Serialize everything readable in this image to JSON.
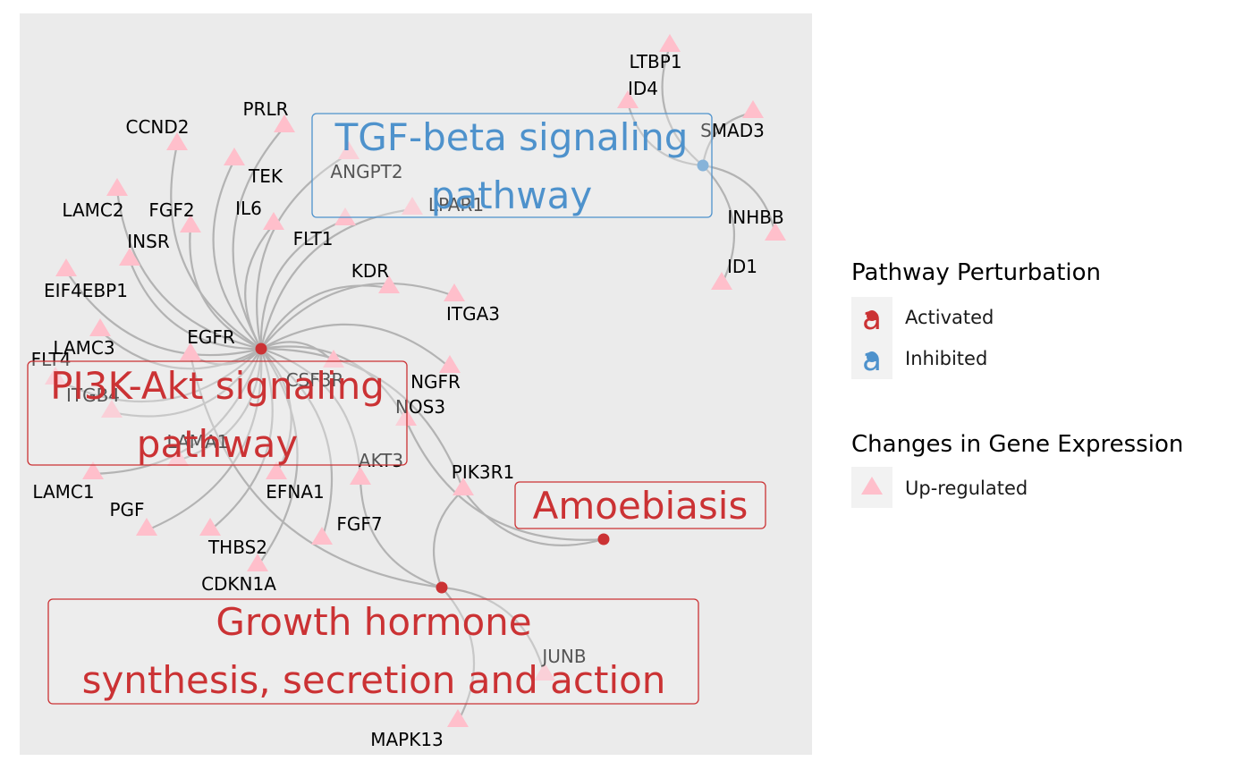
{
  "colors": {
    "activated": "#CB3234",
    "inhibited": "#4E92CC",
    "upregulated": "#FFBFCB",
    "edge": "#B3B3B3",
    "panel": "#EBEBEB"
  },
  "pathways": [
    {
      "id": "tgf",
      "line1": "TGF-beta signaling",
      "line2": "pathway",
      "status": "inhibited"
    },
    {
      "id": "pi3k",
      "line1": "PI3K-Akt signaling",
      "line2": "pathway",
      "status": "activated"
    },
    {
      "id": "amoeb",
      "line1": "Amoebiasis",
      "line2": "",
      "status": "activated"
    },
    {
      "id": "gh",
      "line1": "Growth hormone",
      "line2": "synthesis, secretion and action",
      "status": "activated"
    }
  ],
  "genes": [
    "LTBP1",
    "ID4",
    "SMAD3",
    "INHBB",
    "ID1",
    "PRLR",
    "CCND2",
    "TEK",
    "ANGPT2",
    "LAMC2",
    "FGF2",
    "IL6",
    "LPAR1",
    "FLT1",
    "INSR",
    "KDR",
    "EIF4EBP1",
    "ITGA3",
    "LAMC3",
    "EGFR",
    "FLT4",
    "CSF3R",
    "NGFR",
    "ITGB4",
    "NOS3",
    "LAMA1",
    "AKT3",
    "PIK3R1",
    "LAMC1",
    "EFNA1",
    "PGF",
    "FGF7",
    "THBS2",
    "CDKN1A",
    "JUNB",
    "MAPK13"
  ],
  "legend": {
    "perturbation": {
      "title": "Pathway Perturbation",
      "items": [
        {
          "label": "Activated",
          "glyph": "a",
          "color_key": "activated"
        },
        {
          "label": "Inhibited",
          "glyph": "a",
          "color_key": "inhibited"
        }
      ]
    },
    "expression": {
      "title": "Changes in Gene Expression",
      "items": [
        {
          "label": "Up-regulated",
          "color_key": "upregulated"
        }
      ]
    }
  }
}
